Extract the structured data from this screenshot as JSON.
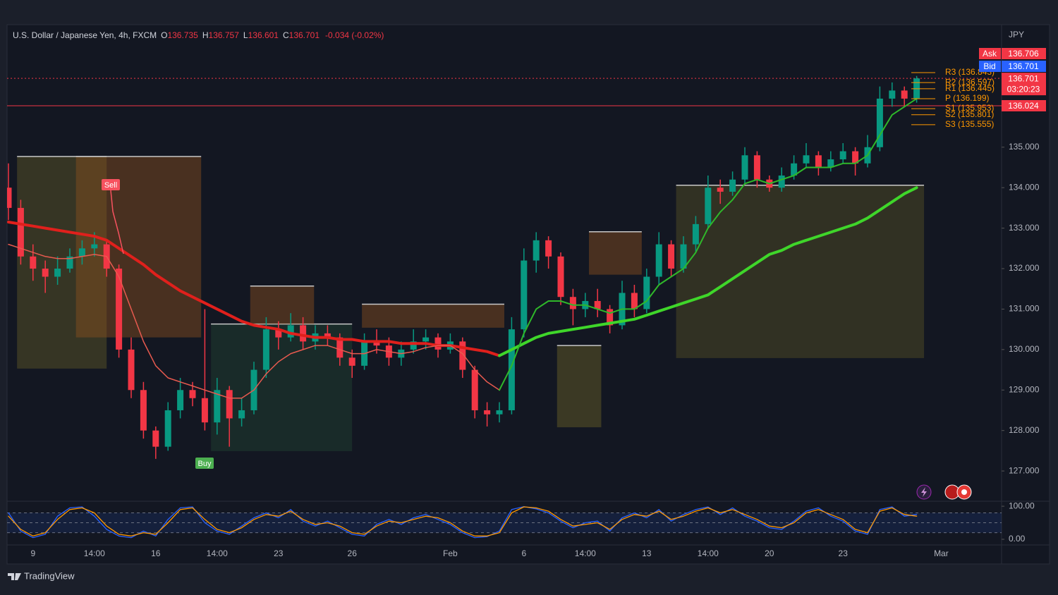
{
  "chart_data": {
    "type": "candlestick",
    "header": {
      "symbol": "U.S. Dollar / Japanese Yen, 4h, FXCM",
      "ohlc": [
        {
          "key": "O",
          "value": "136.735"
        },
        {
          "key": "H",
          "value": "136.757"
        },
        {
          "key": "L",
          "value": "136.601"
        },
        {
          "key": "C",
          "value": "136.701"
        }
      ],
      "change": "-0.034 (-0.02%)"
    },
    "currency": "JPY",
    "brand": "TradingView",
    "categories": [
      null,
      null,
      "9",
      null,
      null,
      null,
      null,
      "14:00",
      null,
      null,
      null,
      null,
      "16",
      null,
      null,
      null,
      null,
      "14:00",
      null,
      null,
      null,
      null,
      "23",
      null,
      null,
      null,
      null,
      null,
      "26",
      null,
      null,
      null,
      null,
      null,
      null,
      null,
      "Feb",
      null,
      null,
      null,
      null,
      null,
      "6",
      null,
      null,
      null,
      null,
      "14:00",
      null,
      null,
      null,
      null,
      "13",
      null,
      null,
      null,
      null,
      "14:00",
      null,
      null,
      null,
      null,
      "20",
      null,
      null,
      null,
      null,
      null,
      "23",
      null,
      null,
      null,
      null,
      null,
      null,
      null,
      "Mar"
    ],
    "candles": {
      "open": [
        134.0,
        133.5,
        132.3,
        132.0,
        131.8,
        132.0,
        132.3,
        132.5,
        132.6,
        132.0,
        130.0,
        129.0,
        128.0,
        127.6,
        128.5,
        129.0,
        128.8,
        128.2,
        129.0,
        128.3,
        128.5,
        129.5,
        130.5,
        130.3,
        130.6,
        130.2,
        130.4,
        130.3,
        129.8,
        129.6,
        130.2,
        130.1,
        129.8,
        130.0,
        130.2,
        130.3,
        130.0,
        130.2,
        129.5,
        128.5,
        128.4,
        128.5,
        130.5,
        132.2,
        132.7,
        132.3,
        131.3,
        131.0,
        131.2,
        131.0,
        130.6,
        131.4,
        131.0,
        131.8,
        132.6,
        132.0,
        132.6,
        133.1,
        134.0,
        133.9,
        134.2,
        134.8,
        134.2,
        134.0,
        134.3,
        134.6,
        134.8,
        134.5,
        134.7,
        134.9,
        134.6,
        135.0,
        136.2,
        136.4,
        136.2,
        null,
        null
      ],
      "high": [
        134.6,
        133.7,
        132.6,
        132.2,
        132.3,
        132.5,
        132.7,
        132.9,
        132.7,
        132.1,
        130.3,
        129.2,
        128.1,
        128.7,
        129.3,
        129.2,
        131.0,
        129.3,
        129.1,
        128.8,
        129.7,
        130.8,
        130.7,
        130.9,
        130.8,
        130.6,
        130.6,
        130.4,
        130.0,
        130.4,
        130.5,
        130.3,
        130.2,
        130.5,
        130.5,
        130.4,
        130.4,
        130.3,
        129.6,
        128.7,
        128.7,
        130.8,
        132.5,
        132.9,
        132.8,
        132.4,
        131.5,
        131.4,
        131.5,
        131.1,
        131.7,
        131.6,
        132.0,
        132.9,
        132.7,
        132.8,
        133.3,
        134.3,
        134.2,
        134.4,
        135.0,
        134.9,
        134.3,
        134.5,
        134.8,
        135.1,
        134.9,
        134.9,
        135.1,
        135.0,
        135.3,
        136.5,
        136.6,
        136.5,
        136.76,
        null,
        null
      ],
      "low": [
        133.2,
        132.1,
        131.7,
        131.4,
        131.6,
        131.9,
        132.1,
        132.3,
        131.8,
        129.8,
        128.8,
        127.8,
        127.3,
        127.5,
        128.3,
        128.6,
        128.0,
        127.9,
        127.6,
        128.1,
        128.4,
        129.3,
        130.0,
        130.2,
        130.0,
        130.0,
        130.1,
        129.6,
        129.3,
        129.5,
        129.9,
        129.6,
        129.6,
        129.9,
        130.0,
        129.8,
        129.9,
        129.3,
        128.3,
        128.1,
        128.2,
        128.4,
        130.3,
        131.9,
        132.0,
        131.1,
        130.6,
        130.8,
        130.8,
        130.4,
        130.5,
        130.8,
        130.9,
        131.6,
        131.8,
        131.9,
        132.4,
        133.0,
        133.6,
        133.8,
        134.1,
        134.0,
        133.9,
        133.9,
        134.2,
        134.5,
        134.3,
        134.4,
        134.6,
        134.3,
        134.5,
        134.9,
        136.0,
        136.0,
        136.1,
        null,
        null
      ],
      "close": [
        133.5,
        132.3,
        132.0,
        131.8,
        132.0,
        132.3,
        132.5,
        132.6,
        132.0,
        130.0,
        129.0,
        128.0,
        127.6,
        128.5,
        129.0,
        128.8,
        128.2,
        129.0,
        128.3,
        128.5,
        129.5,
        130.5,
        130.3,
        130.6,
        130.2,
        130.4,
        130.3,
        129.8,
        129.6,
        130.2,
        130.1,
        129.8,
        130.0,
        130.2,
        130.3,
        130.0,
        130.2,
        129.5,
        128.5,
        128.4,
        128.5,
        130.5,
        132.2,
        132.7,
        132.3,
        131.3,
        131.0,
        131.2,
        131.0,
        130.6,
        131.4,
        131.0,
        131.8,
        132.6,
        132.0,
        132.6,
        133.1,
        134.0,
        133.9,
        134.2,
        134.8,
        134.2,
        134.0,
        134.3,
        134.6,
        134.8,
        134.5,
        134.7,
        134.9,
        134.6,
        135.0,
        136.2,
        136.4,
        136.2,
        136.7,
        null,
        null
      ],
      "up_color": "#089981",
      "down_color": "#f23645"
    },
    "series": [
      {
        "color": "#e0201c",
        "width": 4,
        "values": [
          133.15,
          133.1,
          133.05,
          133.0,
          132.95,
          132.9,
          132.85,
          132.8,
          132.7,
          132.5,
          132.3,
          132.1,
          131.85,
          131.65,
          131.45,
          131.3,
          131.15,
          131.0,
          130.85,
          130.7,
          130.6,
          130.55,
          130.5,
          130.4,
          130.35,
          130.3,
          130.3,
          130.25,
          130.25,
          130.2,
          130.2,
          130.2,
          130.15,
          130.15,
          130.15,
          130.1,
          130.1,
          130.05,
          130.0,
          129.95,
          129.85,
          null,
          null,
          null,
          null,
          null,
          null,
          null,
          null,
          null,
          null,
          null,
          null,
          null,
          null,
          null,
          null,
          null,
          null,
          null,
          null,
          null,
          null,
          null,
          null,
          null,
          null,
          null,
          null,
          null,
          null,
          null,
          null,
          null,
          null,
          null,
          null
        ]
      },
      {
        "color": "#3fd62a",
        "width": 4,
        "values": [
          null,
          null,
          null,
          null,
          null,
          null,
          null,
          null,
          null,
          null,
          null,
          null,
          null,
          null,
          null,
          null,
          null,
          null,
          null,
          null,
          null,
          null,
          null,
          null,
          null,
          null,
          null,
          null,
          null,
          null,
          null,
          null,
          null,
          null,
          null,
          null,
          null,
          null,
          null,
          null,
          129.85,
          130.0,
          130.15,
          130.3,
          130.4,
          130.45,
          130.5,
          130.55,
          130.6,
          130.65,
          130.7,
          130.75,
          130.85,
          130.95,
          131.05,
          131.15,
          131.25,
          131.35,
          131.55,
          131.75,
          131.95,
          132.15,
          132.35,
          132.45,
          132.6,
          132.7,
          132.8,
          132.9,
          133.0,
          133.1,
          133.25,
          133.45,
          133.65,
          133.85,
          134.0,
          null,
          null
        ]
      },
      {
        "color": "#e85a4f",
        "width": 1.5,
        "values": [
          132.6,
          132.5,
          132.4,
          132.3,
          132.25,
          132.25,
          132.3,
          132.35,
          132.3,
          131.8,
          131.0,
          130.2,
          129.6,
          129.3,
          129.2,
          129.1,
          129.0,
          128.9,
          128.8,
          128.8,
          129.0,
          129.4,
          129.7,
          129.9,
          130.0,
          130.1,
          130.1,
          130.0,
          129.9,
          129.9,
          130.0,
          129.95,
          129.9,
          129.95,
          130.05,
          130.1,
          130.1,
          129.9,
          129.5,
          129.2,
          129.0,
          null,
          null,
          null,
          null,
          null,
          null,
          null,
          null,
          null,
          null,
          null,
          null,
          null,
          null,
          null,
          null,
          null,
          null,
          null,
          null,
          null,
          null,
          null,
          null,
          null,
          null,
          null,
          null,
          null,
          null,
          null,
          null,
          null,
          null,
          null,
          null
        ]
      },
      {
        "color": "#2fb82a",
        "width": 2,
        "values": [
          null,
          null,
          null,
          null,
          null,
          null,
          null,
          null,
          null,
          null,
          null,
          null,
          null,
          null,
          null,
          null,
          null,
          null,
          null,
          null,
          null,
          null,
          null,
          null,
          null,
          null,
          null,
          null,
          null,
          null,
          null,
          null,
          null,
          null,
          null,
          null,
          null,
          null,
          null,
          null,
          129.0,
          129.6,
          130.4,
          131.0,
          131.2,
          131.2,
          131.1,
          131.1,
          131.0,
          130.9,
          131.0,
          131.0,
          131.2,
          131.6,
          131.8,
          132.0,
          132.4,
          133.0,
          133.4,
          133.7,
          134.1,
          134.2,
          134.1,
          134.2,
          134.3,
          134.5,
          134.5,
          134.5,
          134.6,
          134.6,
          134.8,
          135.3,
          135.8,
          136.0,
          136.2,
          null,
          null
        ]
      }
    ],
    "zones": [
      {
        "from": 0.7,
        "to": 8.0,
        "top": 134.77,
        "bottom": 129.53,
        "color": "rgba(120,110,40,0.35)"
      },
      {
        "from": 5.5,
        "to": 15.7,
        "top": 134.77,
        "bottom": 130.3,
        "color": "rgba(140,80,30,0.45)"
      },
      {
        "from": 16.5,
        "to": 28.0,
        "top": 130.63,
        "bottom": 127.49,
        "color": "rgba(40,90,60,0.3)"
      },
      {
        "from": 19.7,
        "to": 24.9,
        "top": 131.57,
        "bottom": 130.63,
        "color": "rgba(140,80,30,0.45)"
      },
      {
        "from": 28.8,
        "to": 40.4,
        "top": 131.12,
        "bottom": 130.54,
        "color": "rgba(140,80,30,0.45)"
      },
      {
        "from": 44.7,
        "to": 48.3,
        "top": 130.1,
        "bottom": 128.08,
        "color": "rgba(120,110,40,0.4)"
      },
      {
        "from": 47.3,
        "to": 51.6,
        "top": 132.91,
        "bottom": 131.85,
        "color": "rgba(140,80,30,0.45)"
      },
      {
        "from": 54.4,
        "to": 74.6,
        "top": 134.06,
        "bottom": 129.79,
        "color": "rgba(120,110,40,0.3)"
      }
    ],
    "ylim": [
      126.27,
      137.94
    ],
    "yticks": [
      {
        "value": 127,
        "label": "127.000"
      },
      {
        "value": 128,
        "label": "128.000"
      },
      {
        "value": 129,
        "label": "129.000"
      },
      {
        "value": 130,
        "label": "130.000"
      },
      {
        "value": 131,
        "label": "131.000"
      },
      {
        "value": 132,
        "label": "132.000"
      },
      {
        "value": 133,
        "label": "133.000"
      },
      {
        "value": 134,
        "label": "134.000"
      },
      {
        "value": 135,
        "label": "135.000"
      }
    ],
    "grid": false,
    "pivots": {
      "color": "#ff9800",
      "levels": [
        {
          "label": "R3 (136.843)",
          "value": 136.843
        },
        {
          "label": "R2 (136.597)",
          "value": 136.597
        },
        {
          "label": "R1 (136.445)",
          "value": 136.445
        },
        {
          "label": "P (136.199)",
          "value": 136.199
        },
        {
          "label": "S1 (135.953)",
          "value": 135.953
        },
        {
          "label": "S2 (135.801)",
          "value": 135.801
        },
        {
          "label": "S3 (135.555)",
          "value": 135.555
        }
      ]
    },
    "price_tags": [
      {
        "label": "Ask",
        "value": 136.706,
        "value_label": "136.706",
        "color": "#f23645"
      },
      {
        "label": "Bid",
        "value": 136.701,
        "value_label": "136.701",
        "color": "#2962ff"
      },
      {
        "value": 136.701,
        "value_label": "136.701",
        "countdown": "03:20:23",
        "color": "#f23645",
        "line": "dotted"
      },
      {
        "value": 136.024,
        "value_label": "136.024",
        "color": "#f23645",
        "line": "solid"
      }
    ],
    "annotations": [
      {
        "text": "Sell",
        "color": "#f7525f"
      },
      {
        "text": "Buy",
        "color": "#4caf50"
      }
    ],
    "oscillator": {
      "ylim": [
        -15,
        113
      ],
      "yticks": [
        {
          "value": 100,
          "label": "100.00"
        },
        {
          "value": 0,
          "label": "0.00"
        }
      ],
      "levels": [
        80,
        50,
        20
      ],
      "series": [
        {
          "color": "#2962ff",
          "values": [
            80,
            25,
            5,
            15,
            70,
            95,
            98,
            70,
            30,
            10,
            5,
            25,
            10,
            60,
            95,
            98,
            50,
            25,
            15,
            40,
            65,
            80,
            65,
            90,
            55,
            40,
            55,
            35,
            15,
            10,
            45,
            60,
            45,
            65,
            75,
            60,
            45,
            20,
            5,
            8,
            25,
            90,
            99,
            92,
            80,
            55,
            35,
            50,
            55,
            25,
            65,
            80,
            65,
            90,
            55,
            75,
            90,
            98,
            75,
            95,
            70,
            55,
            35,
            30,
            55,
            85,
            95,
            70,
            55,
            25,
            15,
            90,
            98,
            70,
            75,
            null,
            null
          ]
        },
        {
          "color": "#ff9800",
          "values": [
            70,
            30,
            10,
            20,
            60,
            90,
            95,
            80,
            40,
            15,
            10,
            20,
            15,
            50,
            90,
            95,
            60,
            30,
            20,
            35,
            60,
            75,
            70,
            85,
            60,
            45,
            50,
            40,
            20,
            15,
            40,
            55,
            50,
            60,
            70,
            65,
            50,
            25,
            10,
            10,
            20,
            80,
            98,
            95,
            85,
            60,
            40,
            45,
            50,
            30,
            60,
            75,
            70,
            85,
            60,
            70,
            85,
            95,
            80,
            90,
            75,
            60,
            40,
            35,
            50,
            80,
            90,
            75,
            60,
            30,
            20,
            85,
            95,
            75,
            70,
            null,
            null
          ]
        }
      ]
    }
  }
}
